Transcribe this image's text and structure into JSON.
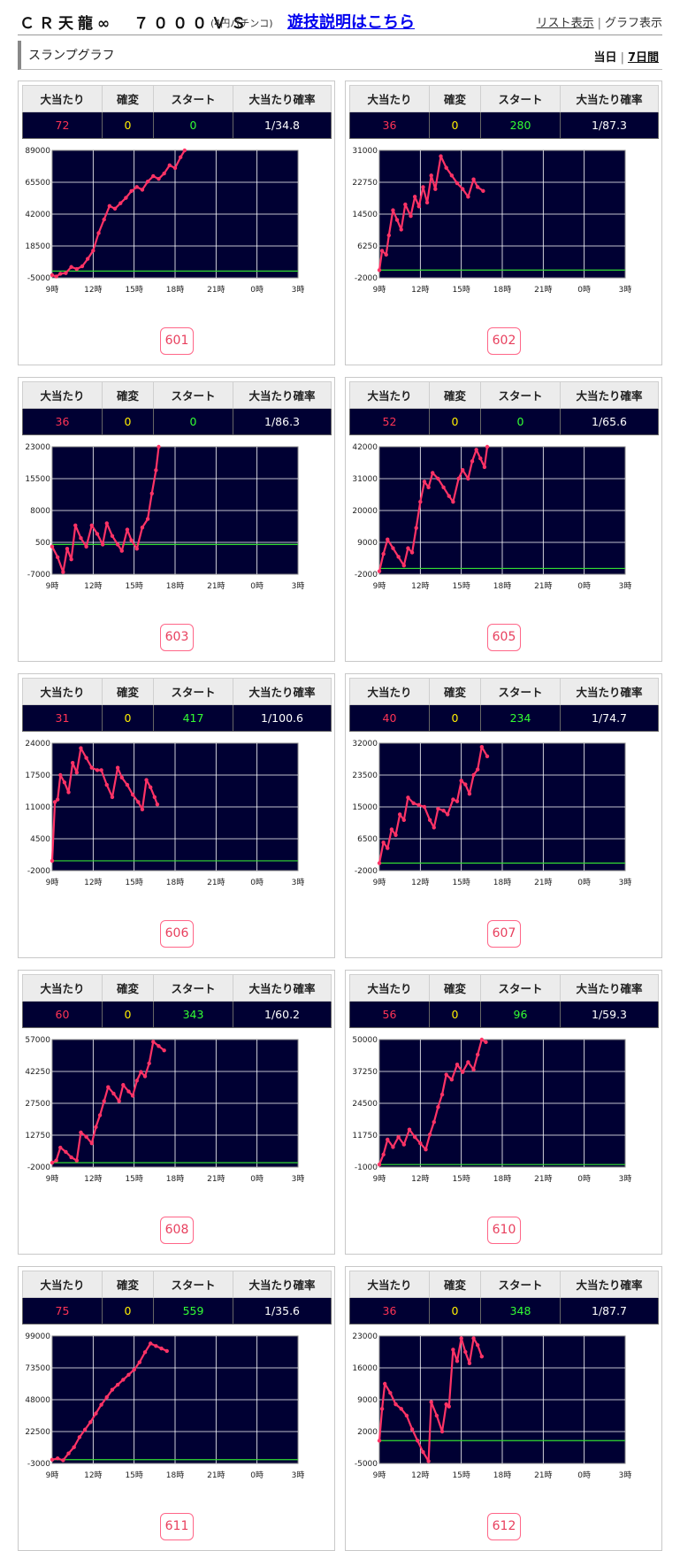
{
  "header": {
    "title": "ＣＲ天龍∞　７０００ＶＳ",
    "subtitle": "(4円パチンコ)",
    "guide_link": "遊技説明はこちら",
    "list_view": "リスト表示",
    "graph_view": "グラフ表示"
  },
  "section": {
    "title": "スランプグラフ",
    "today": "当日",
    "seven_days": "7日間"
  },
  "columns": [
    "大当たり",
    "確変",
    "スタート",
    "大当たり確率"
  ],
  "x_ticks": [
    "9時",
    "12時",
    "15時",
    "18時",
    "21時",
    "0時",
    "3時"
  ],
  "colors": {
    "line": "#ff3366",
    "zero_line": "#33dd33",
    "plot_bg": "#000033",
    "grid": "#ffffff"
  },
  "machines": [
    {
      "id": "601",
      "big": "72",
      "kakuhen": "0",
      "start": "0",
      "ratio": "1/34.8",
      "chart_data": {
        "type": "line",
        "yticks": [
          "89000",
          "65500",
          "42000",
          "18500",
          "-5000"
        ],
        "ylim": [
          -5000,
          89000
        ],
        "points": [
          [
            0,
            -3000
          ],
          [
            0.3,
            -4000
          ],
          [
            0.6,
            -2000
          ],
          [
            1.0,
            -1500
          ],
          [
            1.4,
            3000
          ],
          [
            1.8,
            1500
          ],
          [
            2.2,
            3500
          ],
          [
            2.6,
            9000
          ],
          [
            3.0,
            15000
          ],
          [
            3.4,
            28000
          ],
          [
            3.8,
            38000
          ],
          [
            4.2,
            48000
          ],
          [
            4.6,
            46000
          ],
          [
            5.0,
            50000
          ],
          [
            5.4,
            54000
          ],
          [
            5.8,
            59000
          ],
          [
            6.2,
            62000
          ],
          [
            6.6,
            60000
          ],
          [
            7.0,
            66000
          ],
          [
            7.4,
            70000
          ],
          [
            7.8,
            68000
          ],
          [
            8.2,
            72000
          ],
          [
            8.6,
            78000
          ],
          [
            9.0,
            76000
          ],
          [
            9.4,
            84000
          ],
          [
            9.7,
            89000
          ]
        ]
      }
    },
    {
      "id": "602",
      "big": "36",
      "kakuhen": "0",
      "start": "280",
      "ratio": "1/87.3",
      "chart_data": {
        "type": "line",
        "yticks": [
          "31000",
          "22750",
          "14500",
          "6250",
          "-2000"
        ],
        "ylim": [
          -2000,
          31000
        ],
        "points": [
          [
            0,
            0
          ],
          [
            0.2,
            5000
          ],
          [
            0.5,
            4000
          ],
          [
            0.7,
            9000
          ],
          [
            1.0,
            15500
          ],
          [
            1.3,
            13000
          ],
          [
            1.6,
            10500
          ],
          [
            1.9,
            17000
          ],
          [
            2.3,
            14000
          ],
          [
            2.6,
            19000
          ],
          [
            2.9,
            16500
          ],
          [
            3.2,
            21500
          ],
          [
            3.5,
            17500
          ],
          [
            3.8,
            24500
          ],
          [
            4.1,
            21000
          ],
          [
            4.5,
            29500
          ],
          [
            4.9,
            26500
          ],
          [
            5.3,
            24500
          ],
          [
            5.7,
            22500
          ],
          [
            6.1,
            21000
          ],
          [
            6.5,
            19000
          ],
          [
            6.9,
            23500
          ],
          [
            7.2,
            21500
          ],
          [
            7.6,
            20500
          ]
        ]
      }
    },
    {
      "id": "603",
      "big": "36",
      "kakuhen": "0",
      "start": "0",
      "ratio": "1/86.3",
      "chart_data": {
        "type": "line",
        "yticks": [
          "23000",
          "15500",
          "8000",
          "500",
          "-7000"
        ],
        "ylim": [
          -7000,
          23000
        ],
        "points": [
          [
            0,
            -500
          ],
          [
            0.4,
            -3000
          ],
          [
            0.8,
            -6500
          ],
          [
            1.1,
            -1000
          ],
          [
            1.4,
            -3500
          ],
          [
            1.7,
            4500
          ],
          [
            2.1,
            1500
          ],
          [
            2.5,
            -500
          ],
          [
            2.9,
            4500
          ],
          [
            3.3,
            2500
          ],
          [
            3.7,
            0
          ],
          [
            4.0,
            5000
          ],
          [
            4.4,
            2000
          ],
          [
            4.8,
            0
          ],
          [
            5.1,
            -1500
          ],
          [
            5.5,
            3500
          ],
          [
            5.8,
            1000
          ],
          [
            6.2,
            -1000
          ],
          [
            6.6,
            4000
          ],
          [
            7.0,
            6000
          ],
          [
            7.3,
            12000
          ],
          [
            7.6,
            17500
          ],
          [
            7.8,
            23000
          ]
        ]
      }
    },
    {
      "id": "605",
      "big": "52",
      "kakuhen": "0",
      "start": "0",
      "ratio": "1/65.6",
      "chart_data": {
        "type": "line",
        "yticks": [
          "42000",
          "31000",
          "20000",
          "9000",
          "-2000"
        ],
        "ylim": [
          -2000,
          42000
        ],
        "points": [
          [
            0,
            -1000
          ],
          [
            0.3,
            5000
          ],
          [
            0.6,
            10000
          ],
          [
            1.0,
            7000
          ],
          [
            1.4,
            4000
          ],
          [
            1.8,
            1000
          ],
          [
            2.1,
            7000
          ],
          [
            2.4,
            5500
          ],
          [
            2.7,
            14000
          ],
          [
            3.0,
            23000
          ],
          [
            3.3,
            30000
          ],
          [
            3.6,
            28000
          ],
          [
            3.9,
            33000
          ],
          [
            4.3,
            31000
          ],
          [
            4.7,
            28000
          ],
          [
            5.1,
            25000
          ],
          [
            5.4,
            23000
          ],
          [
            5.8,
            31000
          ],
          [
            6.1,
            34000
          ],
          [
            6.5,
            31000
          ],
          [
            6.8,
            37000
          ],
          [
            7.1,
            41000
          ],
          [
            7.4,
            38000
          ],
          [
            7.7,
            35000
          ],
          [
            7.9,
            42000
          ]
        ]
      }
    },
    {
      "id": "606",
      "big": "31",
      "kakuhen": "0",
      "start": "417",
      "ratio": "1/100.6",
      "chart_data": {
        "type": "line",
        "yticks": [
          "24000",
          "17500",
          "11000",
          "4500",
          "-2000"
        ],
        "ylim": [
          -2000,
          24000
        ],
        "points": [
          [
            0,
            0
          ],
          [
            0.2,
            12000
          ],
          [
            0.4,
            12500
          ],
          [
            0.6,
            17500
          ],
          [
            0.9,
            16000
          ],
          [
            1.2,
            14000
          ],
          [
            1.5,
            20000
          ],
          [
            1.8,
            18000
          ],
          [
            2.1,
            23000
          ],
          [
            2.5,
            21000
          ],
          [
            2.9,
            19000
          ],
          [
            3.3,
            18500
          ],
          [
            3.6,
            18500
          ],
          [
            4.0,
            15500
          ],
          [
            4.4,
            13000
          ],
          [
            4.8,
            19000
          ],
          [
            5.1,
            17000
          ],
          [
            5.5,
            15500
          ],
          [
            5.9,
            13500
          ],
          [
            6.3,
            12000
          ],
          [
            6.6,
            10500
          ],
          [
            6.9,
            16500
          ],
          [
            7.2,
            15000
          ],
          [
            7.5,
            13000
          ],
          [
            7.7,
            11500
          ]
        ]
      }
    },
    {
      "id": "607",
      "big": "40",
      "kakuhen": "0",
      "start": "234",
      "ratio": "1/74.7",
      "chart_data": {
        "type": "line",
        "yticks": [
          "32000",
          "23500",
          "15000",
          "6500",
          "-2000"
        ],
        "ylim": [
          -2000,
          32000
        ],
        "points": [
          [
            0,
            0
          ],
          [
            0.3,
            5500
          ],
          [
            0.6,
            4000
          ],
          [
            0.9,
            9000
          ],
          [
            1.2,
            7500
          ],
          [
            1.5,
            13000
          ],
          [
            1.8,
            11500
          ],
          [
            2.1,
            17500
          ],
          [
            2.5,
            16000
          ],
          [
            2.9,
            15500
          ],
          [
            3.3,
            15000
          ],
          [
            3.7,
            11500
          ],
          [
            4.0,
            9500
          ],
          [
            4.3,
            14500
          ],
          [
            4.7,
            14000
          ],
          [
            5.0,
            13000
          ],
          [
            5.4,
            17000
          ],
          [
            5.7,
            16500
          ],
          [
            6.0,
            22000
          ],
          [
            6.3,
            21000
          ],
          [
            6.6,
            18500
          ],
          [
            6.9,
            23500
          ],
          [
            7.2,
            25000
          ],
          [
            7.5,
            31000
          ],
          [
            7.9,
            28500
          ]
        ]
      }
    },
    {
      "id": "608",
      "big": "60",
      "kakuhen": "0",
      "start": "343",
      "ratio": "1/60.2",
      "chart_data": {
        "type": "line",
        "yticks": [
          "57000",
          "42250",
          "27500",
          "12750",
          "-2000"
        ],
        "ylim": [
          -2000,
          57000
        ],
        "points": [
          [
            0,
            0
          ],
          [
            0.3,
            1000
          ],
          [
            0.6,
            7000
          ],
          [
            1.0,
            5000
          ],
          [
            1.4,
            2500
          ],
          [
            1.8,
            1000
          ],
          [
            2.1,
            14000
          ],
          [
            2.5,
            12000
          ],
          [
            2.9,
            9000
          ],
          [
            3.2,
            16500
          ],
          [
            3.5,
            22000
          ],
          [
            3.8,
            28500
          ],
          [
            4.1,
            35000
          ],
          [
            4.5,
            32000
          ],
          [
            4.9,
            28500
          ],
          [
            5.2,
            36000
          ],
          [
            5.6,
            33000
          ],
          [
            5.9,
            31000
          ],
          [
            6.2,
            38000
          ],
          [
            6.5,
            42000
          ],
          [
            6.8,
            40000
          ],
          [
            7.1,
            46000
          ],
          [
            7.4,
            56000
          ],
          [
            7.8,
            54000
          ],
          [
            8.2,
            52000
          ]
        ]
      }
    },
    {
      "id": "610",
      "big": "56",
      "kakuhen": "0",
      "start": "96",
      "ratio": "1/59.3",
      "chart_data": {
        "type": "line",
        "yticks": [
          "50000",
          "37250",
          "24500",
          "11750",
          "-1000"
        ],
        "ylim": [
          -1000,
          50000
        ],
        "points": [
          [
            0,
            0
          ],
          [
            0.3,
            4000
          ],
          [
            0.6,
            10000
          ],
          [
            1.0,
            7000
          ],
          [
            1.4,
            11000
          ],
          [
            1.8,
            8000
          ],
          [
            2.2,
            14000
          ],
          [
            2.6,
            11000
          ],
          [
            3.0,
            8500
          ],
          [
            3.4,
            6000
          ],
          [
            3.7,
            12000
          ],
          [
            4.0,
            17000
          ],
          [
            4.3,
            23000
          ],
          [
            4.6,
            28000
          ],
          [
            4.9,
            36000
          ],
          [
            5.3,
            34000
          ],
          [
            5.7,
            40000
          ],
          [
            6.1,
            37000
          ],
          [
            6.5,
            41000
          ],
          [
            6.9,
            38000
          ],
          [
            7.2,
            44000
          ],
          [
            7.5,
            50000
          ],
          [
            7.8,
            49000
          ]
        ]
      }
    },
    {
      "id": "611",
      "big": "75",
      "kakuhen": "0",
      "start": "559",
      "ratio": "1/35.6",
      "chart_data": {
        "type": "line",
        "yticks": [
          "99000",
          "73500",
          "48000",
          "22500",
          "-3000"
        ],
        "ylim": [
          -3000,
          99000
        ],
        "points": [
          [
            0,
            0
          ],
          [
            0.4,
            1000
          ],
          [
            0.8,
            -500
          ],
          [
            1.2,
            5000
          ],
          [
            1.6,
            10000
          ],
          [
            2.0,
            18000
          ],
          [
            2.4,
            24000
          ],
          [
            2.8,
            30000
          ],
          [
            3.2,
            37000
          ],
          [
            3.6,
            44000
          ],
          [
            4.0,
            50000
          ],
          [
            4.4,
            56000
          ],
          [
            4.8,
            60000
          ],
          [
            5.2,
            64000
          ],
          [
            5.6,
            68000
          ],
          [
            6.0,
            72000
          ],
          [
            6.4,
            78000
          ],
          [
            6.8,
            86000
          ],
          [
            7.2,
            93000
          ],
          [
            7.6,
            91000
          ],
          [
            8.0,
            89000
          ],
          [
            8.4,
            87000
          ]
        ]
      }
    },
    {
      "id": "612",
      "big": "36",
      "kakuhen": "0",
      "start": "348",
      "ratio": "1/87.7",
      "chart_data": {
        "type": "line",
        "yticks": [
          "23000",
          "16000",
          "9000",
          "2000",
          "-5000"
        ],
        "ylim": [
          -5000,
          23000
        ],
        "points": [
          [
            0,
            0
          ],
          [
            0.2,
            7000
          ],
          [
            0.4,
            12500
          ],
          [
            0.8,
            10500
          ],
          [
            1.2,
            8000
          ],
          [
            1.6,
            7000
          ],
          [
            2.0,
            5500
          ],
          [
            2.4,
            2500
          ],
          [
            2.8,
            0
          ],
          [
            3.2,
            -2500
          ],
          [
            3.6,
            -4500
          ],
          [
            3.8,
            8500
          ],
          [
            4.2,
            5500
          ],
          [
            4.6,
            2000
          ],
          [
            4.9,
            8000
          ],
          [
            5.1,
            7500
          ],
          [
            5.4,
            20000
          ],
          [
            5.7,
            17500
          ],
          [
            6.0,
            22500
          ],
          [
            6.3,
            19500
          ],
          [
            6.6,
            17000
          ],
          [
            6.9,
            22500
          ],
          [
            7.2,
            21000
          ],
          [
            7.5,
            18500
          ]
        ]
      }
    }
  ]
}
